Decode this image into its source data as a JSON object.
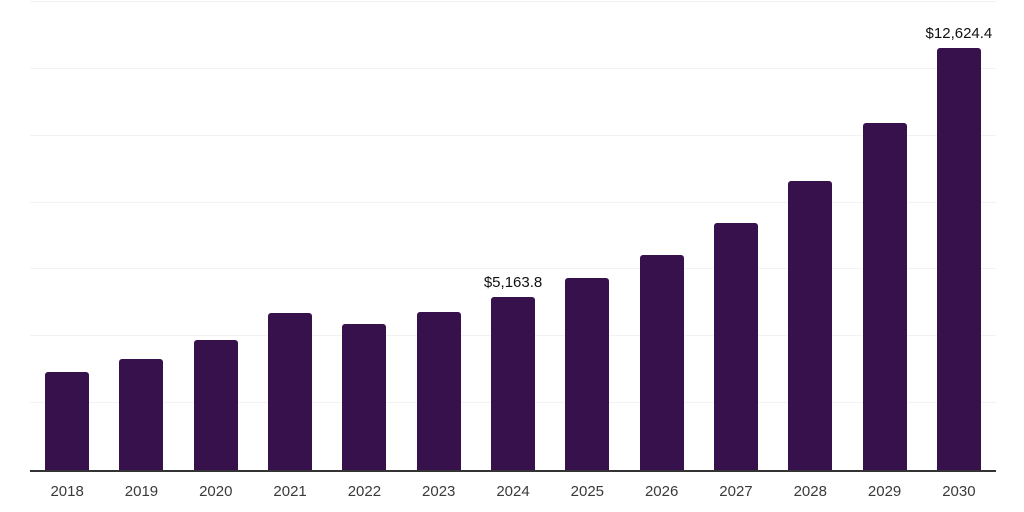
{
  "chart_data": {
    "type": "bar",
    "title": "",
    "xlabel": "",
    "ylabel": "",
    "categories": [
      "2018",
      "2019",
      "2020",
      "2021",
      "2022",
      "2023",
      "2024",
      "2025",
      "2026",
      "2027",
      "2028",
      "2029",
      "2030"
    ],
    "values": [
      2925,
      3320,
      3900,
      4695,
      4380,
      4725,
      5163.8,
      5740,
      6440,
      7375,
      8655,
      10390,
      12624.4
    ],
    "data_labels": [
      {
        "category": "2024",
        "text": "$5,163.8"
      },
      {
        "category": "2030",
        "text": "$12,624.4"
      }
    ],
    "ylim": [
      0,
      14000
    ],
    "gridline_step": 2000,
    "grid": true,
    "legend_position": "none",
    "bar_color": "#36114C",
    "axis_line_color": "#333333",
    "gridline_color": "#f2f2f2",
    "tick_label_color": "#3a3a3a",
    "value_label_color": "#111111"
  }
}
